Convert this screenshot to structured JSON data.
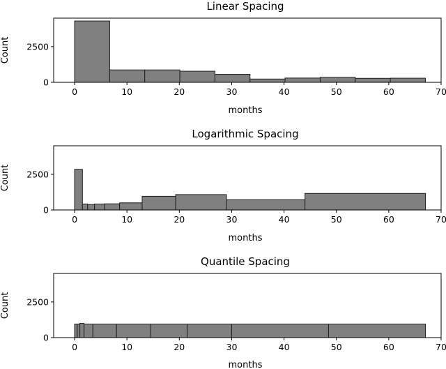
{
  "chart_data": [
    {
      "type": "histogram",
      "title": "Linear Spacing",
      "xlabel": "months",
      "ylabel": "Count",
      "xlim": [
        -4,
        70
      ],
      "ylim": [
        0,
        4500
      ],
      "xticks": [
        0,
        10,
        20,
        30,
        40,
        50,
        60,
        70
      ],
      "yticks": [
        0,
        2500
      ],
      "bins": [
        {
          "x0": 0.0,
          "x1": 6.7,
          "count": 4300
        },
        {
          "x0": 6.7,
          "x1": 13.4,
          "count": 870
        },
        {
          "x0": 13.4,
          "x1": 20.1,
          "count": 870
        },
        {
          "x0": 20.1,
          "x1": 26.8,
          "count": 780
        },
        {
          "x0": 26.8,
          "x1": 33.5,
          "count": 560
        },
        {
          "x0": 33.5,
          "x1": 40.2,
          "count": 230
        },
        {
          "x0": 40.2,
          "x1": 46.9,
          "count": 300
        },
        {
          "x0": 46.9,
          "x1": 53.6,
          "count": 350
        },
        {
          "x0": 53.6,
          "x1": 60.3,
          "count": 280
        },
        {
          "x0": 60.3,
          "x1": 67.0,
          "count": 290
        }
      ]
    },
    {
      "type": "histogram",
      "title": "Logarithmic Spacing",
      "xlabel": "months",
      "ylabel": "Count",
      "xlim": [
        -4,
        70
      ],
      "ylim": [
        0,
        4500
      ],
      "xticks": [
        0,
        10,
        20,
        30,
        40,
        50,
        60,
        70
      ],
      "yticks": [
        0,
        2500
      ],
      "bins": [
        {
          "x0": 0.0,
          "x1": 1.5,
          "count": 2850
        },
        {
          "x0": 1.5,
          "x1": 2.5,
          "count": 420
        },
        {
          "x0": 2.5,
          "x1": 3.8,
          "count": 380
        },
        {
          "x0": 3.8,
          "x1": 5.7,
          "count": 420
        },
        {
          "x0": 5.7,
          "x1": 8.6,
          "count": 430
        },
        {
          "x0": 8.6,
          "x1": 12.9,
          "count": 500
        },
        {
          "x0": 12.9,
          "x1": 19.3,
          "count": 960
        },
        {
          "x0": 19.3,
          "x1": 29.0,
          "count": 1080
        },
        {
          "x0": 29.0,
          "x1": 44.0,
          "count": 720
        },
        {
          "x0": 44.0,
          "x1": 67.0,
          "count": 1160
        }
      ]
    },
    {
      "type": "histogram",
      "title": "Quantile Spacing",
      "xlabel": "months",
      "ylabel": "Count",
      "xlim": [
        -4,
        70
      ],
      "ylim": [
        0,
        4500
      ],
      "xticks": [
        0,
        10,
        20,
        30,
        40,
        50,
        60,
        70
      ],
      "yticks": [
        0,
        2500
      ],
      "bins": [
        {
          "x0": 0.0,
          "x1": 0.5,
          "count": 950
        },
        {
          "x0": 0.5,
          "x1": 1.0,
          "count": 950
        },
        {
          "x0": 1.0,
          "x1": 1.8,
          "count": 1000
        },
        {
          "x0": 1.8,
          "x1": 3.5,
          "count": 950
        },
        {
          "x0": 3.5,
          "x1": 8.0,
          "count": 950
        },
        {
          "x0": 8.0,
          "x1": 14.5,
          "count": 950
        },
        {
          "x0": 14.5,
          "x1": 21.5,
          "count": 950
        },
        {
          "x0": 21.5,
          "x1": 30.0,
          "count": 950
        },
        {
          "x0": 30.0,
          "x1": 48.5,
          "count": 950
        },
        {
          "x0": 48.5,
          "x1": 67.0,
          "count": 950
        }
      ]
    }
  ]
}
